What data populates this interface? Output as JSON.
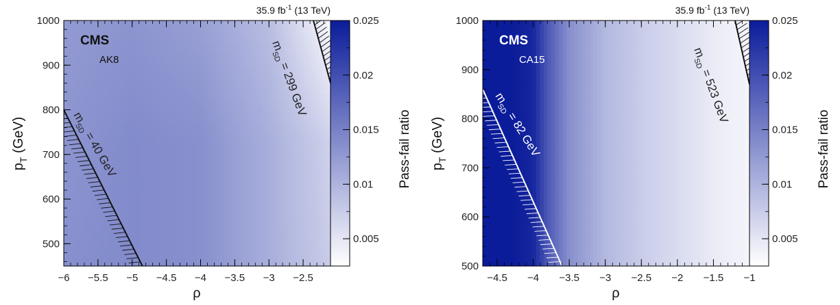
{
  "chart_data": [
    {
      "type": "heatmap",
      "lumi": "35.9 fb",
      "lumi_exp": "-1",
      "energy": "(13 TeV)",
      "experiment": "CMS",
      "jet_algorithm": "AK8",
      "xlabel": "ρ",
      "ylabel": "p",
      "ylabel_sub": "T",
      "ylabel_unit": "(GeV)",
      "zlabel": "Pass-fail ratio",
      "xlim": [
        -6.0,
        -2.1
      ],
      "ylim": [
        450,
        1000
      ],
      "zlim": [
        0.0025,
        0.025
      ],
      "xticks": [
        -6,
        -5.5,
        -5,
        -4.5,
        -4,
        -3.5,
        -3,
        -2.5
      ],
      "xtick_labels": [
        "−6",
        "−5.5",
        "−5",
        "−4.5",
        "−4",
        "−3.5",
        "−3",
        "−2.5"
      ],
      "yticks": [
        500,
        600,
        700,
        800,
        900,
        1000
      ],
      "ytick_labels": [
        "500",
        "600",
        "700",
        "800",
        "900",
        "1000"
      ],
      "zticks": [
        0.005,
        0.01,
        0.015,
        0.02,
        0.025
      ],
      "ztick_labels": [
        "0.005",
        "0.01",
        "0.015",
        "0.02",
        "0.025"
      ],
      "colormap": {
        "low": "#ffffff",
        "high": "#0b1c9a"
      },
      "field_samples": {
        "x": [
          -6.0,
          -5.0,
          -4.0,
          -3.0,
          -2.1
        ],
        "y": [
          450,
          725,
          1000
        ],
        "z": [
          [
            0.0135,
            0.014,
            0.0135,
            0.0105,
            0.0075
          ],
          [
            0.013,
            0.014,
            0.0135,
            0.0105,
            0.007
          ],
          [
            0.0125,
            0.013,
            0.012,
            0.009,
            0.003
          ]
        ]
      },
      "contours": [
        {
          "label_m": "m",
          "label_sub": "SD",
          "label_value": "= 40 GeV",
          "line": [
            [
              -6.0,
              800
            ],
            [
              -4.85,
              450
            ]
          ],
          "hatch_side": "left"
        },
        {
          "label_m": "m",
          "label_sub": "SD",
          "label_value": "= 299 GeV",
          "line": [
            [
              -2.35,
              1000
            ],
            [
              -2.1,
              860
            ]
          ],
          "hatch_side": "right"
        }
      ]
    },
    {
      "type": "heatmap",
      "lumi": "35.9 fb",
      "lumi_exp": "-1",
      "energy": "(13 TeV)",
      "experiment": "CMS",
      "jet_algorithm": "CA15",
      "xlabel": "ρ",
      "ylabel": "p",
      "ylabel_sub": "T",
      "ylabel_unit": "(GeV)",
      "zlabel": "Pass-fail ratio",
      "xlim": [
        -4.7,
        -1.0
      ],
      "ylim": [
        500,
        1000
      ],
      "zlim": [
        0.0025,
        0.025
      ],
      "xticks": [
        -4.5,
        -4,
        -3.5,
        -3,
        -2.5,
        -2,
        -1.5,
        -1
      ],
      "xtick_labels": [
        "−4.5",
        "−4",
        "−3.5",
        "−3",
        "−2.5",
        "−2",
        "−1.5",
        "−1"
      ],
      "yticks": [
        500,
        600,
        700,
        800,
        900,
        1000
      ],
      "ytick_labels": [
        "500",
        "600",
        "700",
        "800",
        "900",
        "1000"
      ],
      "zticks": [
        0.005,
        0.01,
        0.015,
        0.02,
        0.025
      ],
      "ztick_labels": [
        "0.005",
        "0.01",
        "0.015",
        "0.02",
        "0.025"
      ],
      "colormap": {
        "low": "#ffffff",
        "high": "#0b1c9a"
      },
      "field_profile": {
        "x": [
          -4.7,
          -4.3,
          -4.0,
          -3.8,
          -3.5,
          -3.0,
          -2.5,
          -2.0,
          -1.5,
          -1.0
        ],
        "z": [
          0.025,
          0.025,
          0.024,
          0.019,
          0.0135,
          0.0095,
          0.0075,
          0.006,
          0.0045,
          0.0035
        ]
      },
      "contours": [
        {
          "label_m": "m",
          "label_sub": "SD",
          "label_value": "= 82 GeV",
          "line": [
            [
              -4.7,
              860
            ],
            [
              -3.6,
              500
            ]
          ],
          "hatch_side": "left"
        },
        {
          "label_m": "m",
          "label_sub": "SD",
          "label_value": "= 523 GeV",
          "line": [
            [
              -1.2,
              1000
            ],
            [
              -1.0,
              870
            ]
          ],
          "hatch_side": "right"
        }
      ]
    }
  ]
}
